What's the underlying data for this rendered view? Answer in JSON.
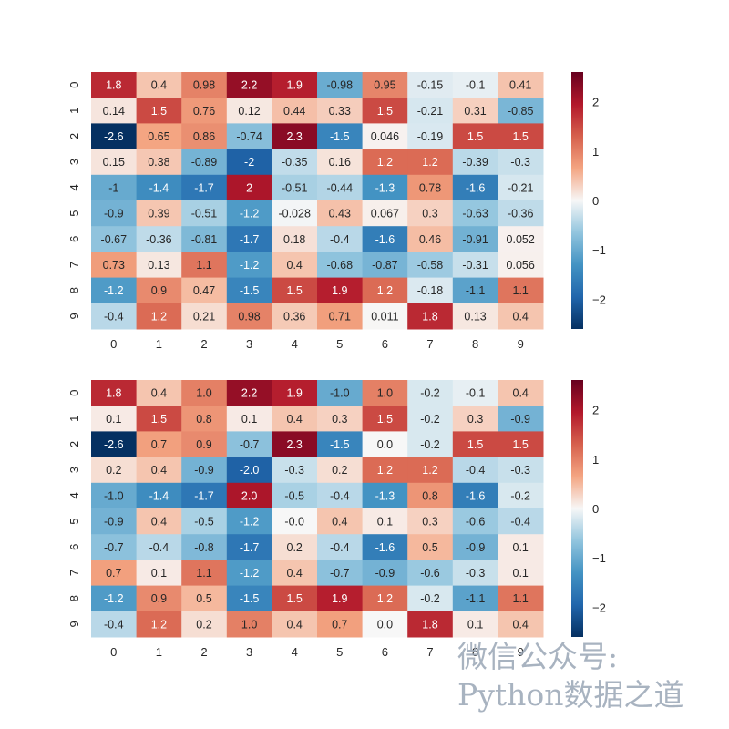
{
  "chart_data": [
    {
      "type": "heatmap",
      "colormap": "RdBu_r",
      "color_range": [
        -2.6,
        2.6
      ],
      "x_categories": [
        "0",
        "1",
        "2",
        "3",
        "4",
        "5",
        "6",
        "7",
        "8",
        "9"
      ],
      "y_categories": [
        "0",
        "1",
        "2",
        "3",
        "4",
        "5",
        "6",
        "7",
        "8",
        "9"
      ],
      "annotations": [
        [
          "1.8",
          "0.4",
          "0.98",
          "2.2",
          "1.9",
          "-0.98",
          "0.95",
          "-0.15",
          "-0.1",
          "0.41"
        ],
        [
          "0.14",
          "1.5",
          "0.76",
          "0.12",
          "0.44",
          "0.33",
          "1.5",
          "-0.21",
          "0.31",
          "-0.85"
        ],
        [
          "-2.6",
          "0.65",
          "0.86",
          "-0.74",
          "2.3",
          "-1.5",
          "0.046",
          "-0.19",
          "1.5",
          "1.5"
        ],
        [
          "0.15",
          "0.38",
          "-0.89",
          "-2",
          "-0.35",
          "0.16",
          "1.2",
          "1.2",
          "-0.39",
          "-0.3"
        ],
        [
          "-1",
          "-1.4",
          "-1.7",
          "2",
          "-0.51",
          "-0.44",
          "-1.3",
          "0.78",
          "-1.6",
          "-0.21"
        ],
        [
          "-0.9",
          "0.39",
          "-0.51",
          "-1.2",
          "-0.028",
          "0.43",
          "0.067",
          "0.3",
          "-0.63",
          "-0.36"
        ],
        [
          "-0.67",
          "-0.36",
          "-0.81",
          "-1.7",
          "0.18",
          "-0.4",
          "-1.6",
          "0.46",
          "-0.91",
          "0.052"
        ],
        [
          "0.73",
          "0.13",
          "1.1",
          "-1.2",
          "0.4",
          "-0.68",
          "-0.87",
          "-0.58",
          "-0.31",
          "0.056"
        ],
        [
          "-1.2",
          "0.9",
          "0.47",
          "-1.5",
          "1.5",
          "1.9",
          "1.2",
          "-0.18",
          "-1.1",
          "1.1"
        ],
        [
          "-0.4",
          "1.2",
          "0.21",
          "0.98",
          "0.36",
          "0.71",
          "0.011",
          "1.8",
          "0.13",
          "0.4"
        ]
      ],
      "colorbar_ticks": [
        "−2",
        "−1",
        "0",
        "1",
        "2"
      ],
      "colorbar_tick_values": [
        -2,
        -1,
        0,
        1,
        2
      ]
    },
    {
      "type": "heatmap",
      "colormap": "RdBu_r",
      "color_range": [
        -2.6,
        2.6
      ],
      "x_categories": [
        "0",
        "1",
        "2",
        "3",
        "4",
        "5",
        "6",
        "7",
        "8",
        "9"
      ],
      "y_categories": [
        "0",
        "1",
        "2",
        "3",
        "4",
        "5",
        "6",
        "7",
        "8",
        "9"
      ],
      "annotations": [
        [
          "1.8",
          "0.4",
          "1.0",
          "2.2",
          "1.9",
          "-1.0",
          "1.0",
          "-0.2",
          "-0.1",
          "0.4"
        ],
        [
          "0.1",
          "1.5",
          "0.8",
          "0.1",
          "0.4",
          "0.3",
          "1.5",
          "-0.2",
          "0.3",
          "-0.9"
        ],
        [
          "-2.6",
          "0.7",
          "0.9",
          "-0.7",
          "2.3",
          "-1.5",
          "0.0",
          "-0.2",
          "1.5",
          "1.5"
        ],
        [
          "0.2",
          "0.4",
          "-0.9",
          "-2.0",
          "-0.3",
          "0.2",
          "1.2",
          "1.2",
          "-0.4",
          "-0.3"
        ],
        [
          "-1.0",
          "-1.4",
          "-1.7",
          "2.0",
          "-0.5",
          "-0.4",
          "-1.3",
          "0.8",
          "-1.6",
          "-0.2"
        ],
        [
          "-0.9",
          "0.4",
          "-0.5",
          "-1.2",
          "-0.0",
          "0.4",
          "0.1",
          "0.3",
          "-0.6",
          "-0.4"
        ],
        [
          "-0.7",
          "-0.4",
          "-0.8",
          "-1.7",
          "0.2",
          "-0.4",
          "-1.6",
          "0.5",
          "-0.9",
          "0.1"
        ],
        [
          "0.7",
          "0.1",
          "1.1",
          "-1.2",
          "0.4",
          "-0.7",
          "-0.9",
          "-0.6",
          "-0.3",
          "0.1"
        ],
        [
          "-1.2",
          "0.9",
          "0.5",
          "-1.5",
          "1.5",
          "1.9",
          "1.2",
          "-0.2",
          "-1.1",
          "1.1"
        ],
        [
          "-0.4",
          "1.2",
          "0.2",
          "1.0",
          "0.4",
          "0.7",
          "0.0",
          "1.8",
          "0.1",
          "0.4"
        ]
      ],
      "colorbar_ticks": [
        "−2",
        "−1",
        "0",
        "1",
        "2"
      ],
      "colorbar_tick_values": [
        -2,
        -1,
        0,
        1,
        2
      ]
    }
  ],
  "watermark": {
    "line1": "微信公众号:",
    "line2": "Python数据之道"
  }
}
